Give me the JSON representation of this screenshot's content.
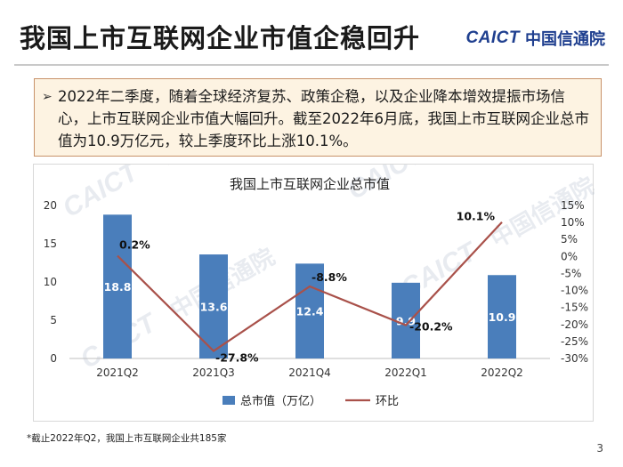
{
  "slide": {
    "title": "我国上市互联网企业市值企稳回升",
    "logo_mark": "CAICT",
    "logo_cn": "中国信通院",
    "callout": "2022年二季度，随着全球经济复苏、政策企稳，以及企业降本增效提振市场信心，上市互联网企业市值大幅回升。截至2022年6月底，我国上市互联网企业总市值为10.9万亿元，较上季度环比上涨10.1%。",
    "footnote": "*截止2022年Q2，我国上市互联网企业共185家",
    "page_number": "3",
    "watermark_mark": "CAICT",
    "watermark_cn": "中国信通院"
  },
  "chart_data": {
    "type": "bar",
    "title": "我国上市互联网企业总市值",
    "categories": [
      "2021Q2",
      "2021Q3",
      "2021Q4",
      "2022Q1",
      "2022Q2"
    ],
    "series": [
      {
        "name": "总市值（万亿）",
        "type": "bar",
        "axis": "left",
        "color": "#4a7ebb",
        "values": [
          18.8,
          13.6,
          12.4,
          9.9,
          10.9
        ],
        "labels": [
          "18.8",
          "13.6",
          "12.4",
          "9.9",
          "10.9"
        ]
      },
      {
        "name": "环比",
        "type": "line",
        "axis": "right",
        "color": "#a9514a",
        "values": [
          0.2,
          -27.8,
          -8.8,
          -20.2,
          10.1
        ],
        "labels": [
          "0.2%",
          "-27.8%",
          "-8.8%",
          "-20.2%",
          "10.1%"
        ]
      }
    ],
    "y_left": {
      "range": [
        0,
        20
      ],
      "ticks": [
        "0",
        "5",
        "10",
        "15",
        "20"
      ]
    },
    "y_right": {
      "range": [
        -30,
        15
      ],
      "ticks": [
        "15%",
        "10%",
        "5%",
        "0%",
        "-5%",
        "-10%",
        "-15%",
        "-20%",
        "-25%",
        "-30%"
      ]
    },
    "grid": false,
    "legend": "bottom"
  }
}
